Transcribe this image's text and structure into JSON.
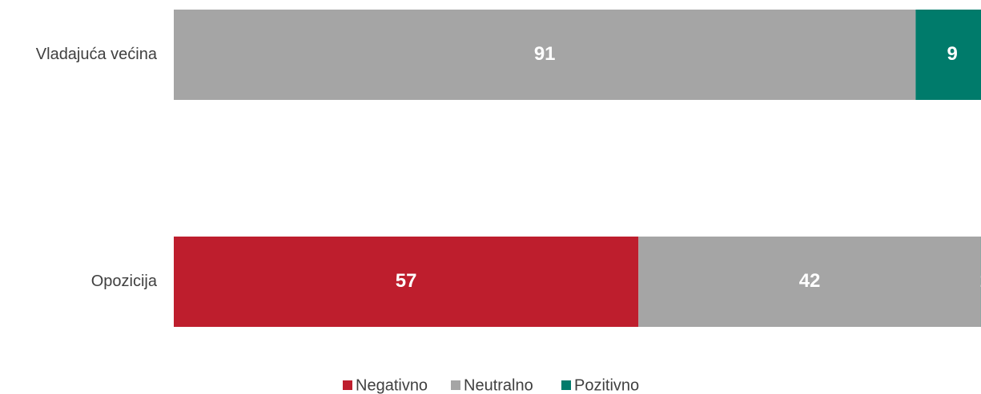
{
  "chart_data": {
    "type": "stacked_bar_horizontal",
    "categories": [
      "Vladajuća većina",
      "Opozicija"
    ],
    "series": [
      {
        "name": "Negativno",
        "color": "#be1e2d",
        "values": [
          0,
          57
        ]
      },
      {
        "name": "Neutralno",
        "color": "#a5a5a5",
        "values": [
          91,
          42
        ]
      },
      {
        "name": "Pozitivno",
        "color": "#007b6b",
        "values": [
          9,
          1
        ]
      }
    ],
    "xlim": [
      0,
      100
    ],
    "legend": "bottom"
  }
}
